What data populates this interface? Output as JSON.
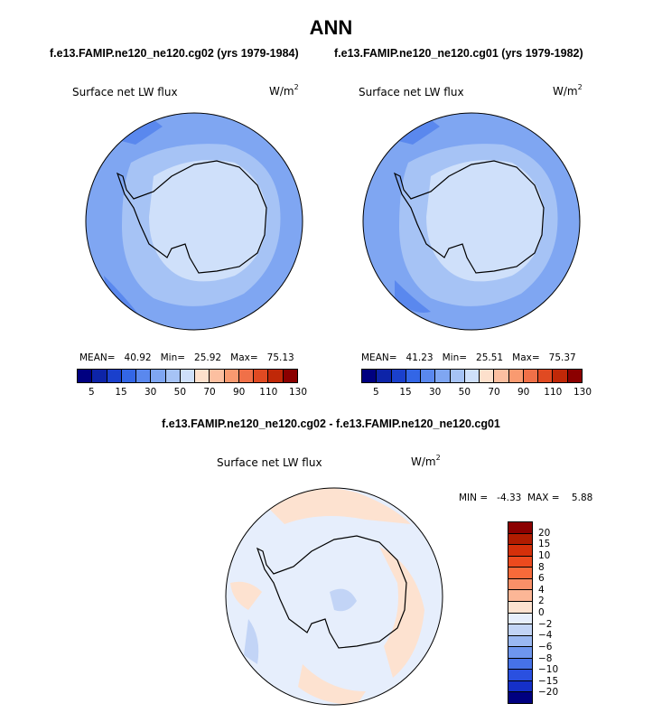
{
  "title": "ANN",
  "subtitles": {
    "left": "f.e13.FAMIP.ne120_ne120.cg02 (yrs 1979-1984)",
    "right": "f.e13.FAMIP.ne120_ne120.cg01 (yrs 1979-1982)",
    "diff": "f.e13.FAMIP.ne120_ne120.cg02 - f.e13.FAMIP.ne120_ne120.cg01"
  },
  "panels": {
    "left": {
      "label": "Surface net LW flux",
      "unit_base": "W/m",
      "unit_exp": "2",
      "stats": "MEAN=   40.92   Min=   25.92   Max=   75.13"
    },
    "right": {
      "label": "Surface net LW flux",
      "unit_base": "W/m",
      "unit_exp": "2",
      "stats": "MEAN=   41.23   Min=   25.51   Max=   75.37"
    },
    "diff": {
      "label": "Surface net LW flux",
      "unit_base": "W/m",
      "unit_exp": "2",
      "stats": "MIN =   -4.33  MAX =    5.88"
    }
  },
  "colorbar_main": {
    "colors": [
      "#000080",
      "#0d24a8",
      "#1a40cc",
      "#3366e6",
      "#5a88ee",
      "#7fa6f2",
      "#a6c3f5",
      "#cfe0fa",
      "#fde0cc",
      "#fcbfa0",
      "#f99a70",
      "#f07048",
      "#e04a22",
      "#c02808",
      "#8b0000"
    ],
    "labels": [
      "5",
      "15",
      "30",
      "50",
      "70",
      "90",
      "110",
      "130"
    ]
  },
  "colorbar_diff": {
    "colors": [
      "#8b0000",
      "#b01c00",
      "#d4300a",
      "#ec4a1e",
      "#f76a3a",
      "#fa9068",
      "#fcb696",
      "#fde2d0",
      "#e6eefc",
      "#c2d4f6",
      "#9ab8f2",
      "#6e96ee",
      "#4672e8",
      "#2a50e0",
      "#1530c8",
      "#000080"
    ],
    "labels": [
      "20",
      "15",
      "10",
      "8",
      "6",
      "4",
      "2",
      "0",
      "−2",
      "−4",
      "−6",
      "−8",
      "−10",
      "−15",
      "−20"
    ]
  }
}
